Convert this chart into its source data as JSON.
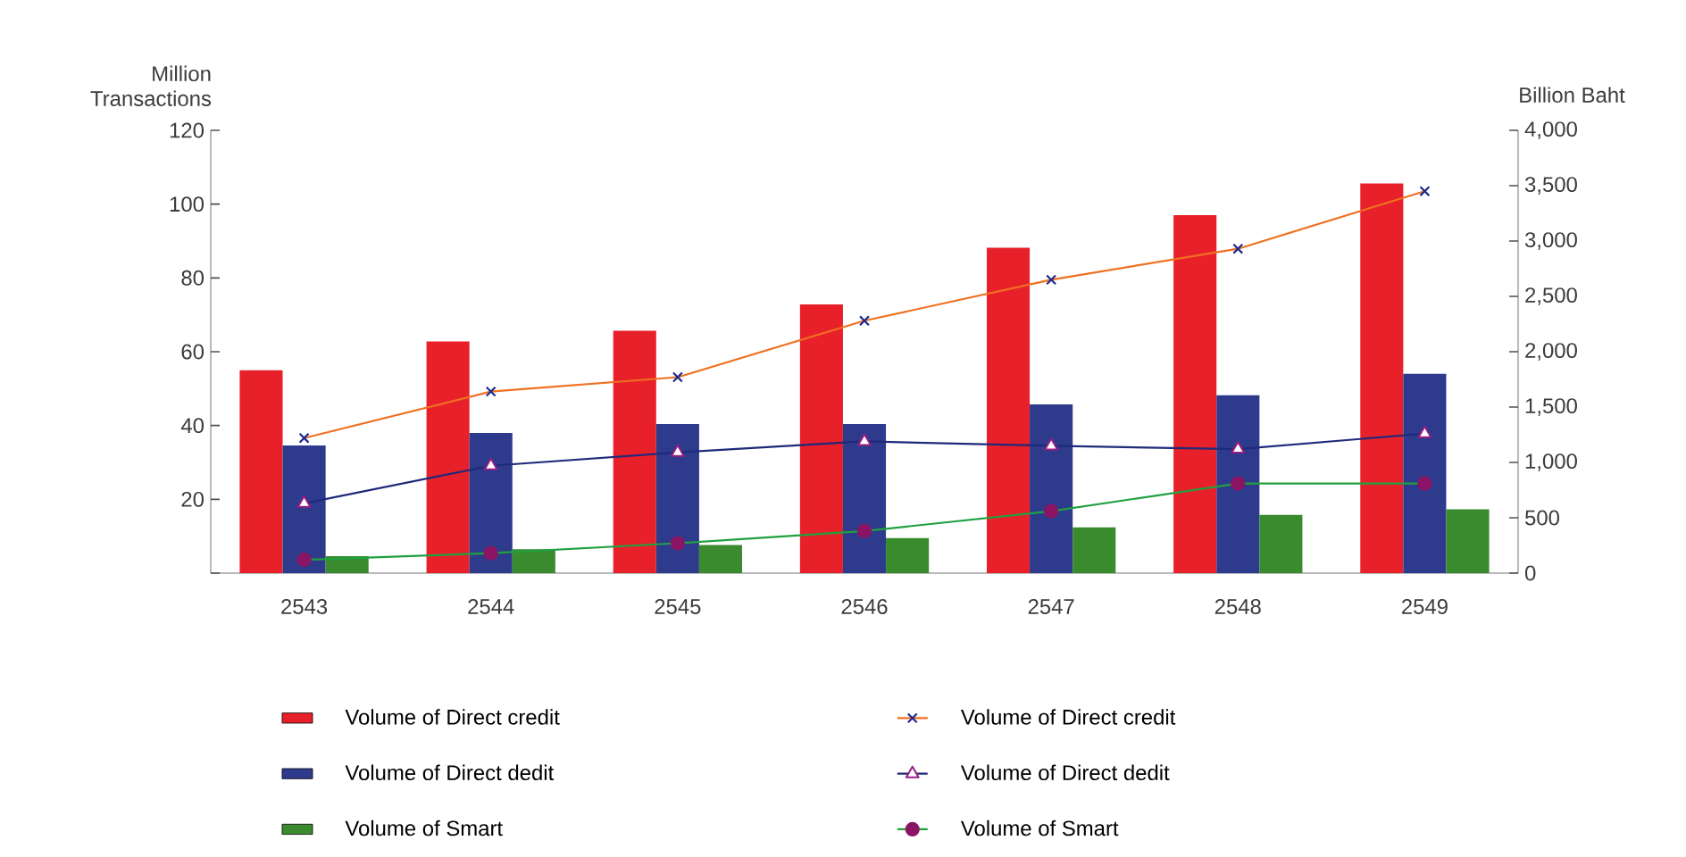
{
  "chart_data": {
    "type": "bar",
    "ylabel": "Million Transactions",
    "y2label": "Billion Baht",
    "categories": [
      "2543",
      "2544",
      "2545",
      "2546",
      "2547",
      "2548",
      "2549"
    ],
    "series": [
      {
        "name": "Volume of Direct credit",
        "color": "#e8202a",
        "values": [
          55,
          62.8,
          65.7,
          72.8,
          88.2,
          97,
          105.6
        ]
      },
      {
        "name": "Volume of Direct dedit",
        "color": "#2e3a8c",
        "values": [
          34.6,
          38,
          40.4,
          40.4,
          45.7,
          48.2,
          54
        ]
      },
      {
        "name": "Volume of Smart",
        "color": "#3a8a2e",
        "values": [
          4.6,
          6.5,
          7.6,
          9.5,
          12.4,
          15.8,
          17.3
        ]
      },
      {
        "name": "Volume of Direct credit",
        "type": "line",
        "axis": "y2",
        "color": "#f07020",
        "marker": "cross",
        "values": [
          1220,
          1640,
          1770,
          2280,
          2650,
          2930,
          3450
        ]
      },
      {
        "name": "Volume of Direct dedit",
        "type": "line",
        "axis": "y2",
        "color": "#1f2a7a",
        "marker": "triangle",
        "values": [
          630,
          970,
          1090,
          1190,
          1150,
          1120,
          1260
        ]
      },
      {
        "name": "Volume of Smart",
        "type": "line",
        "axis": "y2",
        "color": "#20a040",
        "marker": "circle",
        "values": [
          120,
          180,
          270,
          380,
          560,
          810,
          810
        ]
      }
    ],
    "ylim": [
      0,
      120
    ],
    "yticks": [
      {
        "value": 0,
        "label": null
      },
      20,
      40,
      60,
      80,
      100,
      120
    ],
    "y2lim": [
      0,
      4000
    ],
    "y2ticks": [
      0,
      500,
      {
        "value": 1000,
        "label": "1,000"
      },
      {
        "value": 1500,
        "label": "1,500"
      },
      {
        "value": 2000,
        "label": "2,000"
      },
      {
        "value": 2500,
        "label": "2,500"
      },
      {
        "value": 3000,
        "label": "3,000"
      },
      {
        "value": 3500,
        "label": "3,500"
      },
      {
        "value": 4000,
        "label": "4,000"
      }
    ],
    "grid": false,
    "legend": "bottom"
  }
}
